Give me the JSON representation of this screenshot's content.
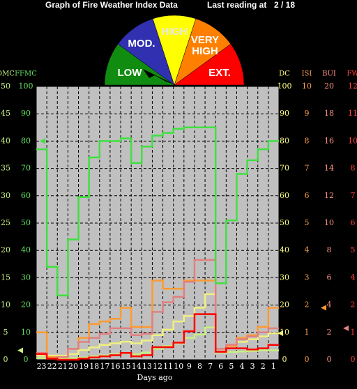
{
  "chart_data": {
    "type": "step-line",
    "title": "Graph of Fire Weather Index Data",
    "last_reading_label": "Last reading at",
    "last_reading": "2 / 18",
    "gauge_labels": [
      "LOW",
      "MOD.",
      "HIGH",
      "VERY",
      "HIGH",
      "EXT."
    ],
    "xlabel": "Days ago",
    "categories": [
      "23",
      "22",
      "21",
      "20",
      "19",
      "18",
      "17",
      "16",
      "15",
      "14",
      "13",
      "12",
      "11",
      "10",
      "9",
      "8",
      "7",
      "6",
      "5",
      "4",
      "3",
      "2",
      "1"
    ],
    "grid": true,
    "axes": [
      {
        "name": "DMC",
        "color": "#c8f080",
        "lim": [
          0,
          50
        ],
        "ticks": [
          0,
          5,
          10,
          15,
          20,
          25,
          30,
          35,
          40,
          45,
          50
        ]
      },
      {
        "name": "FFMC",
        "color": "#60e060",
        "lim": [
          0,
          100
        ],
        "ticks": [
          0,
          10,
          20,
          30,
          40,
          50,
          60,
          70,
          80,
          90,
          100
        ]
      },
      {
        "name": "DC",
        "color": "#ffff80",
        "lim": [
          0,
          100
        ],
        "ticks": [
          0,
          10,
          20,
          30,
          40,
          50,
          60,
          70,
          80,
          90,
          100
        ]
      },
      {
        "name": "ISI",
        "color": "#ffa050",
        "lim": [
          0,
          10
        ],
        "ticks": [
          0,
          1,
          2,
          3,
          4,
          5,
          6,
          7,
          8,
          9,
          10
        ]
      },
      {
        "name": "BUI",
        "color": "#ff9080",
        "lim": [
          0,
          20
        ],
        "ticks": [
          0,
          2,
          4,
          6,
          8,
          10,
          12,
          14,
          16,
          18,
          20
        ]
      },
      {
        "name": "FW",
        "color": "#ff4040",
        "lim": [
          0,
          12
        ],
        "ticks": [
          0,
          {
            "value": 1.2,
            "label": "1"
          },
          {
            "value": 2.4,
            "label": "2"
          },
          {
            "value": 3.6,
            "label": "4"
          },
          {
            "value": 4.8,
            "label": "5"
          },
          6,
          {
            "value": 7.2,
            "label": "7"
          },
          {
            "value": 8.4,
            "label": "8"
          },
          {
            "value": 9.6,
            "label": "10"
          },
          {
            "value": 10.8,
            "label": "11"
          },
          12
        ]
      }
    ],
    "series": [
      {
        "axis": 0,
        "color": "#c8f080",
        "values": [
          0.3,
          0.2,
          0.2,
          0.3,
          0.4,
          0.6,
          0.8,
          1,
          1.2,
          1,
          1.3,
          2,
          2.5,
          3,
          4,
          4.6,
          5.9,
          1.3,
          1.4,
          1.5,
          1.6,
          1.7,
          1.7
        ]
      },
      {
        "axis": 2,
        "color": "#f0f080",
        "values": [
          1.5,
          1.5,
          1.5,
          2,
          3.5,
          4.5,
          5.4,
          6,
          6.6,
          6,
          7,
          9,
          11,
          14,
          16,
          19,
          24,
          4,
          5,
          6.5,
          7.5,
          8.5,
          9.7
        ]
      },
      {
        "axis": 3,
        "color": "#ff9a30",
        "values": [
          1,
          0.1,
          0.1,
          0.4,
          0.8,
          1.3,
          1.4,
          1.5,
          1.9,
          1.2,
          1.2,
          2.9,
          2.6,
          2.6,
          2.9,
          2.9,
          2.9,
          0.3,
          0.5,
          0.8,
          0.9,
          1.2,
          1.9
        ]
      },
      {
        "axis": 4,
        "color": "#e08080",
        "values": [
          0.5,
          0.1,
          0.2,
          0.8,
          1.3,
          1.6,
          1.9,
          2.3,
          2.3,
          1.8,
          1.9,
          3.5,
          4.2,
          4.6,
          5.7,
          7.3,
          7.3,
          0.8,
          1.1,
          1.5,
          1.7,
          2,
          2.3
        ]
      },
      {
        "axis": 5,
        "color": "#ff0000",
        "values": [
          0.25,
          0.05,
          0,
          0,
          0.05,
          0.1,
          0.15,
          0.2,
          0.3,
          0.15,
          0.2,
          0.55,
          0.55,
          0.75,
          1.25,
          2,
          2,
          0.35,
          0.5,
          0.5,
          0.45,
          0.5,
          0.65
        ]
      },
      {
        "axis": 1,
        "color": "#40e040",
        "values": [
          77,
          34,
          23.5,
          44,
          59.5,
          74,
          80,
          80,
          81,
          72,
          78,
          82,
          83,
          84.5,
          85,
          85,
          85,
          28,
          51,
          68,
          73,
          77,
          80
        ]
      }
    ]
  }
}
